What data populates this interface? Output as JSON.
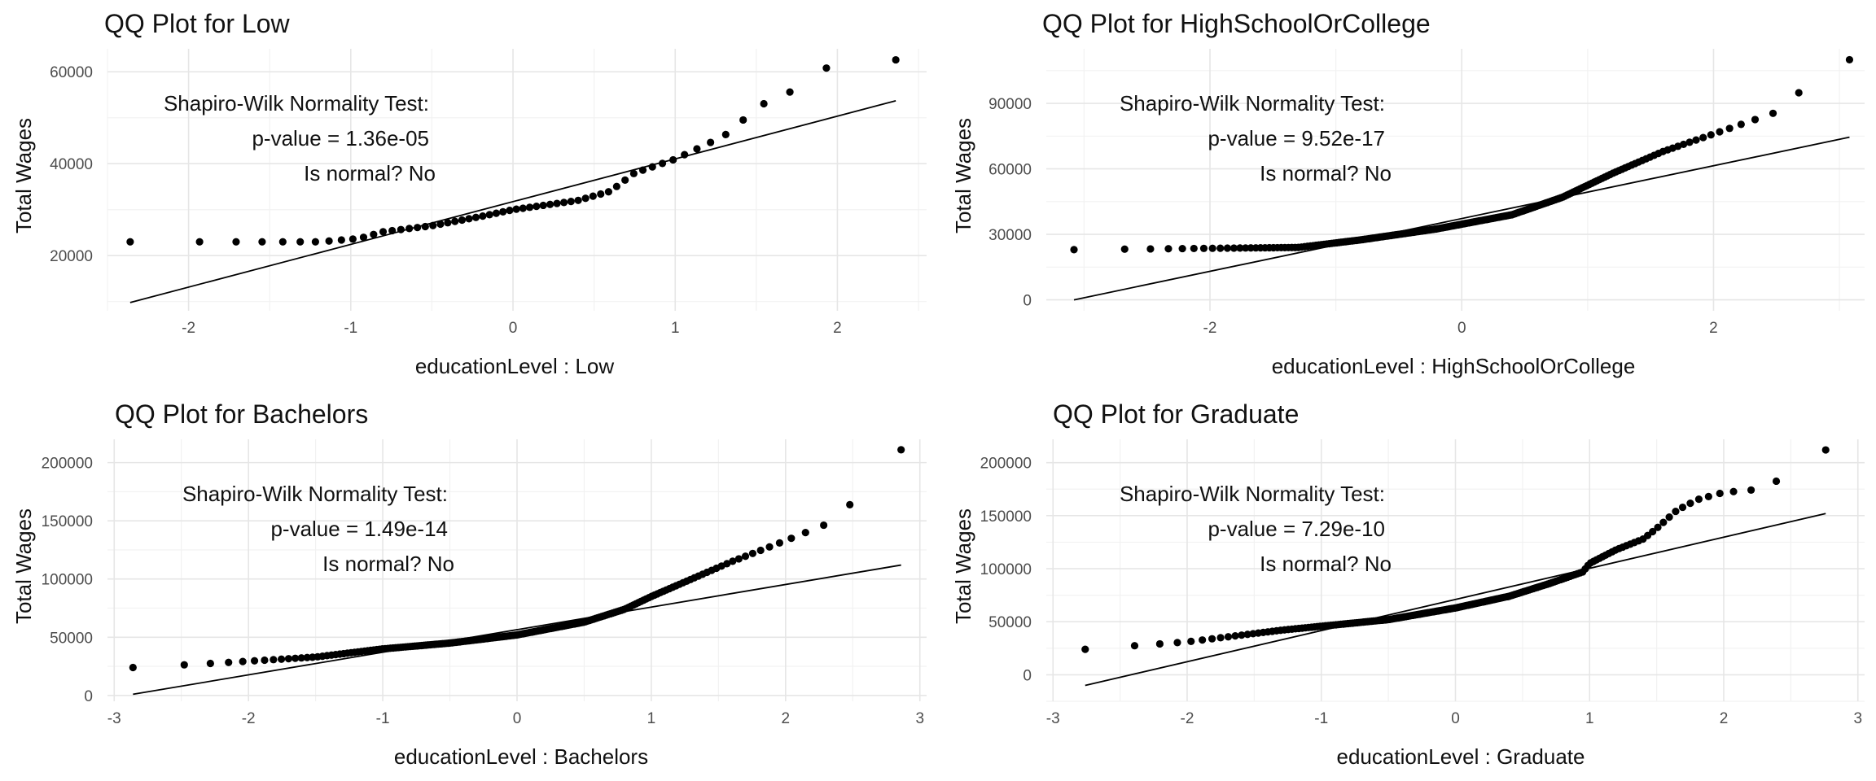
{
  "chart_data": [
    {
      "type": "scatter",
      "title": "QQ Plot for Low",
      "xlabel": "educationLevel : Low",
      "ylabel": "Total Wages",
      "xlim": [
        -2.5,
        2.55
      ],
      "ylim": [
        8000,
        65000
      ],
      "x_ticks": [
        -2,
        -1,
        0,
        1,
        2
      ],
      "y_ticks": [
        20000,
        40000,
        60000
      ],
      "y_tick_labels": [
        "20000",
        "40000",
        "60000"
      ],
      "grid": true,
      "n_points": 60,
      "knots": [
        [
          -2.36,
          23000
        ],
        [
          -1.2,
          23000
        ],
        [
          -0.95,
          23700
        ],
        [
          -0.8,
          25200
        ],
        [
          -0.5,
          26500
        ],
        [
          -0.2,
          28500
        ],
        [
          0.0,
          30000
        ],
        [
          0.4,
          32000
        ],
        [
          0.6,
          34000
        ],
        [
          0.75,
          38000
        ],
        [
          1.0,
          41000
        ],
        [
          1.3,
          46000
        ],
        [
          1.53,
          52800
        ],
        [
          1.69,
          55200
        ],
        [
          1.93,
          60800
        ],
        [
          2.36,
          62600
        ]
      ],
      "ref_line": [
        [
          -2.36,
          9800
        ],
        [
          2.36,
          53700
        ]
      ],
      "annotation": [
        "Shapiro-Wilk Normality Test:",
        "p-value =  1.36e-05",
        "Is normal?  No"
      ]
    },
    {
      "type": "scatter",
      "title": "QQ Plot for HighSchoolOrCollege",
      "xlabel": "educationLevel : HighSchoolOrCollege",
      "ylabel": "Total Wages",
      "xlim": [
        -3.3,
        3.2
      ],
      "ylim": [
        -5000,
        115000
      ],
      "x_ticks": [
        -2,
        0,
        2
      ],
      "y_ticks": [
        0,
        30000,
        60000,
        90000
      ],
      "y_tick_labels": [
        "0",
        "30000",
        "60000",
        "90000"
      ],
      "grid": true,
      "n_points": 220,
      "knots": [
        [
          -3.08,
          23000
        ],
        [
          -1.3,
          24000
        ],
        [
          -0.8,
          27500
        ],
        [
          -0.2,
          32500
        ],
        [
          0.4,
          39000
        ],
        [
          0.8,
          47000
        ],
        [
          1.2,
          58000
        ],
        [
          1.6,
          68000
        ],
        [
          2.0,
          76000
        ],
        [
          2.25,
          81000
        ],
        [
          2.5,
          86000
        ],
        [
          2.7,
          96000
        ],
        [
          3.08,
          110000
        ]
      ],
      "ref_line": [
        [
          -3.08,
          0
        ],
        [
          3.08,
          74500
        ]
      ],
      "annotation": [
        "Shapiro-Wilk Normality Test:",
        "p-value =  9.52e-17",
        "Is normal?  No"
      ]
    },
    {
      "type": "scatter",
      "title": "QQ Plot for Bachelors",
      "xlabel": "educationLevel : Bachelors",
      "ylabel": "Total Wages",
      "xlim": [
        -3.05,
        3.05
      ],
      "ylim": [
        -5000,
        220000
      ],
      "x_ticks": [
        -3,
        -2,
        -1,
        0,
        1,
        2,
        3
      ],
      "y_ticks": [
        0,
        50000,
        100000,
        150000,
        200000
      ],
      "y_tick_labels": [
        "0",
        "50000",
        "100000",
        "150000",
        "200000"
      ],
      "grid": true,
      "n_points": 200,
      "knots": [
        [
          -2.86,
          24000
        ],
        [
          -2.2,
          28000
        ],
        [
          -1.5,
          33000
        ],
        [
          -1.0,
          40000
        ],
        [
          -0.5,
          45000
        ],
        [
          0.0,
          52000
        ],
        [
          0.5,
          63000
        ],
        [
          0.8,
          74000
        ],
        [
          1.0,
          85000
        ],
        [
          1.3,
          100000
        ],
        [
          1.6,
          115000
        ],
        [
          2.0,
          133000
        ],
        [
          2.3,
          147000
        ],
        [
          2.48,
          164000
        ],
        [
          2.86,
          211000
        ]
      ],
      "ref_line": [
        [
          -2.86,
          1000
        ],
        [
          2.86,
          112000
        ]
      ],
      "annotation": [
        "Shapiro-Wilk Normality Test:",
        "p-value =  1.49e-14",
        "Is normal?  No"
      ]
    },
    {
      "type": "scatter",
      "title": "QQ Plot for Graduate",
      "xlabel": "educationLevel : Graduate",
      "ylabel": "Total Wages",
      "xlim": [
        -3.05,
        3.05
      ],
      "ylim": [
        -25000,
        222000
      ],
      "x_ticks": [
        -3,
        -2,
        -1,
        0,
        1,
        2,
        3
      ],
      "y_ticks": [
        0,
        50000,
        100000,
        150000,
        200000
      ],
      "y_tick_labels": [
        "0",
        "50000",
        "100000",
        "150000",
        "200000"
      ],
      "grid": true,
      "n_points": 200,
      "knots": [
        [
          -2.76,
          24000
        ],
        [
          -2.0,
          31000
        ],
        [
          -1.3,
          42000
        ],
        [
          -0.5,
          52000
        ],
        [
          0.0,
          63000
        ],
        [
          0.4,
          74000
        ],
        [
          0.7,
          86000
        ],
        [
          0.95,
          97000
        ],
        [
          1.0,
          105000
        ],
        [
          1.2,
          118000
        ],
        [
          1.4,
          128000
        ],
        [
          1.5,
          138000
        ],
        [
          1.65,
          155000
        ],
        [
          1.8,
          165000
        ],
        [
          2.0,
          172000
        ],
        [
          2.2,
          174000
        ],
        [
          2.36,
          180000
        ],
        [
          2.76,
          212000
        ]
      ],
      "ref_line": [
        [
          -2.76,
          -10000
        ],
        [
          2.76,
          152000
        ]
      ],
      "annotation": [
        "Shapiro-Wilk Normality Test:",
        "p-value =  7.29e-10",
        "Is normal?  No"
      ]
    }
  ]
}
